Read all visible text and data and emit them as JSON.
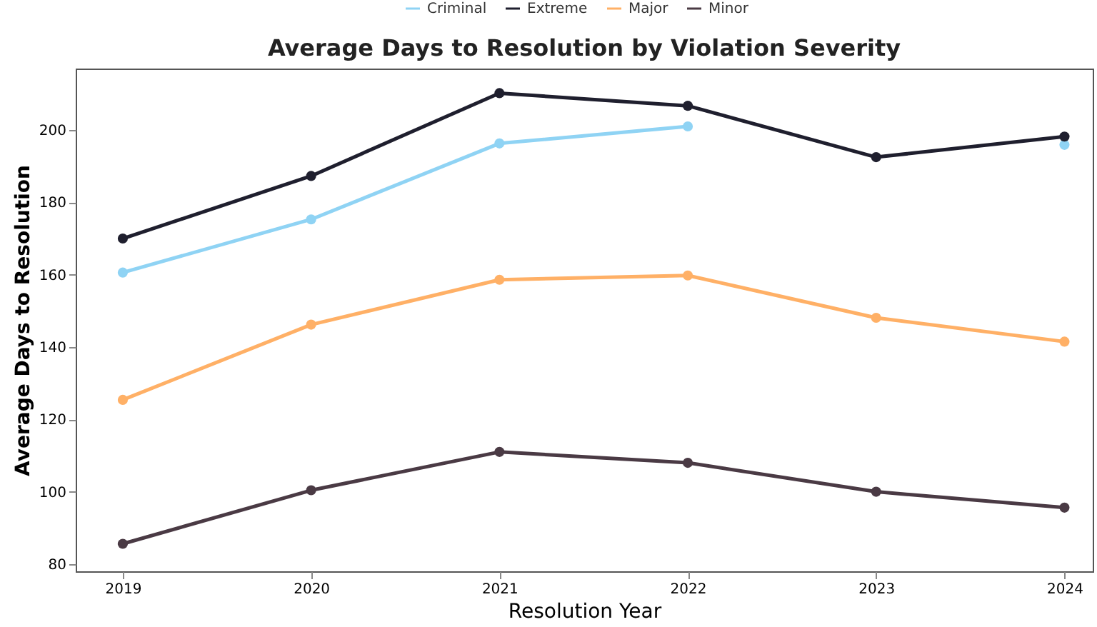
{
  "chart_data": {
    "type": "line",
    "title": "Average Days to Resolution by Violation Severity",
    "xlabel": "Resolution Year",
    "ylabel": "Average Days to Resolution",
    "x": [
      2019,
      2020,
      2021,
      2022,
      2023,
      2024
    ],
    "xlim": [
      2018.75,
      2024.15
    ],
    "xticks": [
      2019,
      2020,
      2021,
      2022,
      2023,
      2024
    ],
    "ylim": [
      78,
      217
    ],
    "yticks": [
      80,
      100,
      120,
      140,
      160,
      180,
      200
    ],
    "series": [
      {
        "name": "Criminal",
        "color": "#8fd3f4",
        "values": [
          160.6,
          175.3,
          196.3,
          201,
          null,
          195.9
        ]
      },
      {
        "name": "Extreme",
        "color": "#1f1f2e",
        "values": [
          170,
          187.3,
          210.2,
          206.7,
          192.5,
          198.2
        ]
      },
      {
        "name": "Major",
        "color": "#ffb066",
        "values": [
          125.4,
          146.2,
          158.6,
          159.8,
          148.1,
          141.5
        ]
      },
      {
        "name": "Minor",
        "color": "#4a3a44",
        "values": [
          85.6,
          100.4,
          111,
          108,
          100,
          95.6
        ]
      }
    ],
    "legend": "top",
    "marker": "circle",
    "grid": false,
    "line_style": "solid"
  }
}
